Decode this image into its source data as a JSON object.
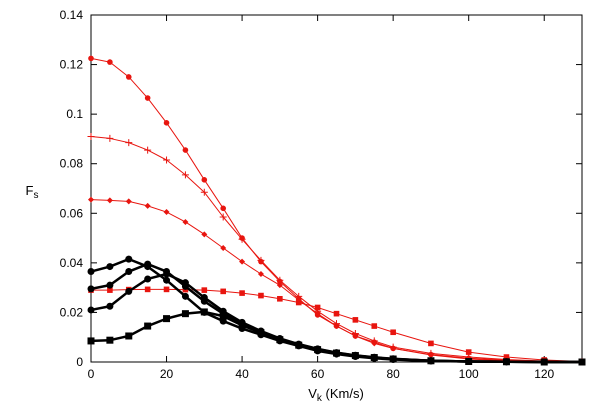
{
  "chart_data": {
    "type": "line",
    "xlabel": "V",
    "xlabel_sub": "k",
    "xlabel_suffix": " (Km/s)",
    "ylabel": "F",
    "ylabel_sub": "s",
    "xlim": [
      0,
      130
    ],
    "ylim": [
      0,
      0.14
    ],
    "xticks": [
      "0",
      "20",
      "40",
      "60",
      "80",
      "100",
      "120"
    ],
    "xtick_values": [
      0,
      20,
      40,
      60,
      80,
      100,
      120
    ],
    "yticks": [
      "0",
      "0.02",
      "0.04",
      "0.06",
      "0.08",
      "0.1",
      "0.12",
      "0.14"
    ],
    "ytick_values": [
      0,
      0.02,
      0.04,
      0.06,
      0.08,
      0.1,
      0.12,
      0.14
    ],
    "grid": false,
    "series": [
      {
        "color": "#e8150f",
        "marker": "circle",
        "width": 1,
        "x": [
          0,
          5,
          10,
          15,
          20,
          25,
          30,
          35,
          40,
          45,
          50,
          55,
          60,
          65,
          70,
          75,
          80,
          90,
          100,
          110,
          120,
          130
        ],
        "y": [
          0.1225,
          0.121,
          0.115,
          0.1065,
          0.0965,
          0.0855,
          0.0735,
          0.062,
          0.05,
          0.0405,
          0.0325,
          0.0255,
          0.019,
          0.0145,
          0.0105,
          0.008,
          0.0055,
          0.003,
          0.0015,
          0.0008,
          0.0003,
          0.0001
        ]
      },
      {
        "color": "#e8150f",
        "marker": "plus",
        "width": 1,
        "x": [
          0,
          5,
          10,
          15,
          20,
          25,
          30,
          35,
          40,
          45,
          50,
          55,
          60,
          65,
          70,
          75,
          80,
          90,
          100,
          110,
          120,
          130
        ],
        "y": [
          0.091,
          0.0902,
          0.0885,
          0.0855,
          0.0815,
          0.0755,
          0.0685,
          0.0585,
          0.0495,
          0.041,
          0.033,
          0.0265,
          0.0205,
          0.0155,
          0.0115,
          0.0085,
          0.006,
          0.0035,
          0.002,
          0.001,
          0.0004,
          0.0001
        ]
      },
      {
        "color": "#e8150f",
        "marker": "diamond",
        "width": 1,
        "x": [
          0,
          5,
          10,
          15,
          20,
          25,
          30,
          35,
          40,
          45,
          50,
          55,
          60,
          65,
          70,
          75,
          80,
          90,
          100,
          110,
          120,
          130
        ],
        "y": [
          0.0655,
          0.0652,
          0.0648,
          0.063,
          0.0605,
          0.0565,
          0.0515,
          0.046,
          0.0405,
          0.0355,
          0.031,
          0.025,
          0.0195,
          0.0145,
          0.0105,
          0.0075,
          0.0055,
          0.0028,
          0.0012,
          0.0005,
          0.0002,
          0.0001
        ]
      },
      {
        "color": "#e8150f",
        "marker": "square",
        "width": 1,
        "x": [
          0,
          5,
          10,
          15,
          20,
          25,
          30,
          35,
          40,
          45,
          50,
          55,
          60,
          65,
          70,
          75,
          80,
          90,
          100,
          110,
          120,
          130
        ],
        "y": [
          0.029,
          0.029,
          0.0292,
          0.0293,
          0.0293,
          0.0292,
          0.029,
          0.0285,
          0.0278,
          0.0268,
          0.0255,
          0.024,
          0.022,
          0.0195,
          0.017,
          0.0145,
          0.012,
          0.0075,
          0.004,
          0.002,
          0.0008,
          0.0002
        ]
      },
      {
        "color": "#000000",
        "marker": "circle",
        "width": 2.5,
        "x": [
          0,
          5,
          10,
          15,
          20,
          25,
          30,
          35,
          40,
          45,
          50,
          55,
          60,
          65,
          70,
          75,
          80,
          90,
          100,
          110,
          120,
          130
        ],
        "y": [
          0.0365,
          0.0385,
          0.0415,
          0.0385,
          0.033,
          0.0265,
          0.02,
          0.0165,
          0.0135,
          0.011,
          0.0085,
          0.0065,
          0.0045,
          0.0032,
          0.0022,
          0.0015,
          0.001,
          0.0004,
          0.0002,
          0.0001,
          0,
          0
        ]
      },
      {
        "color": "#000000",
        "marker": "circle",
        "width": 2.5,
        "x": [
          0,
          5,
          10,
          15,
          20,
          25,
          30,
          35,
          40,
          45,
          50,
          55,
          60,
          65,
          70,
          75,
          80,
          90,
          100,
          110,
          120,
          130
        ],
        "y": [
          0.0295,
          0.031,
          0.0365,
          0.0395,
          0.0365,
          0.0305,
          0.0245,
          0.0195,
          0.0155,
          0.012,
          0.0092,
          0.007,
          0.0052,
          0.0037,
          0.0026,
          0.0018,
          0.0012,
          0.0005,
          0.0002,
          0.0001,
          0,
          0
        ]
      },
      {
        "color": "#000000",
        "marker": "circle",
        "width": 2.5,
        "x": [
          0,
          5,
          10,
          15,
          20,
          25,
          30,
          35,
          40,
          45,
          50,
          55,
          60,
          65,
          70,
          75,
          80,
          90,
          100,
          110,
          120,
          130
        ],
        "y": [
          0.021,
          0.0225,
          0.0285,
          0.0335,
          0.0355,
          0.032,
          0.026,
          0.0205,
          0.016,
          0.0125,
          0.0095,
          0.0072,
          0.0053,
          0.0038,
          0.0027,
          0.0019,
          0.0013,
          0.0005,
          0.0002,
          0.0001,
          0,
          0
        ]
      },
      {
        "color": "#000000",
        "marker": "square",
        "width": 2.5,
        "x": [
          0,
          5,
          10,
          15,
          20,
          25,
          30,
          35,
          40,
          45,
          50,
          55,
          60,
          65,
          70,
          75,
          80,
          90,
          100,
          110,
          120,
          130
        ],
        "y": [
          0.0085,
          0.0088,
          0.0105,
          0.0145,
          0.0175,
          0.0195,
          0.0202,
          0.0185,
          0.0148,
          0.0118,
          0.009,
          0.0068,
          0.005,
          0.0036,
          0.0026,
          0.0018,
          0.0012,
          0.0005,
          0.0002,
          0.0001,
          0,
          0
        ]
      }
    ]
  }
}
